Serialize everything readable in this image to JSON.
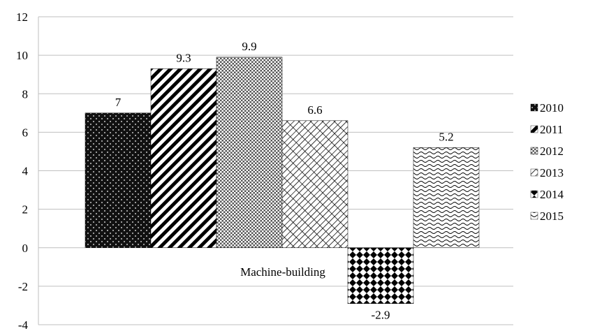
{
  "chart_data": {
    "type": "bar",
    "categories": [
      "Machine-building"
    ],
    "series": [
      {
        "name": "2010",
        "values": [
          7
        ]
      },
      {
        "name": "2011",
        "values": [
          9.3
        ]
      },
      {
        "name": "2012",
        "values": [
          9.9
        ]
      },
      {
        "name": "2013",
        "values": [
          6.6
        ]
      },
      {
        "name": "2014",
        "values": [
          -2.9
        ]
      },
      {
        "name": "2015",
        "values": [
          5.2
        ]
      }
    ],
    "data_labels": [
      "7",
      "9.3",
      "9.9",
      "6.6",
      "-2.9",
      "5.2"
    ],
    "title": "",
    "xlabel": "",
    "ylabel": "",
    "ylim": [
      -4,
      12
    ],
    "yticks": [
      "12",
      "10",
      "8",
      "6",
      "4",
      "2",
      "0",
      "-2",
      "-4"
    ],
    "grid": true,
    "legend_position": "right",
    "pattern_names": [
      "dots",
      "diagonal-stripes",
      "crosshatch",
      "diamond-lattice",
      "checker-diamonds",
      "waves"
    ]
  }
}
